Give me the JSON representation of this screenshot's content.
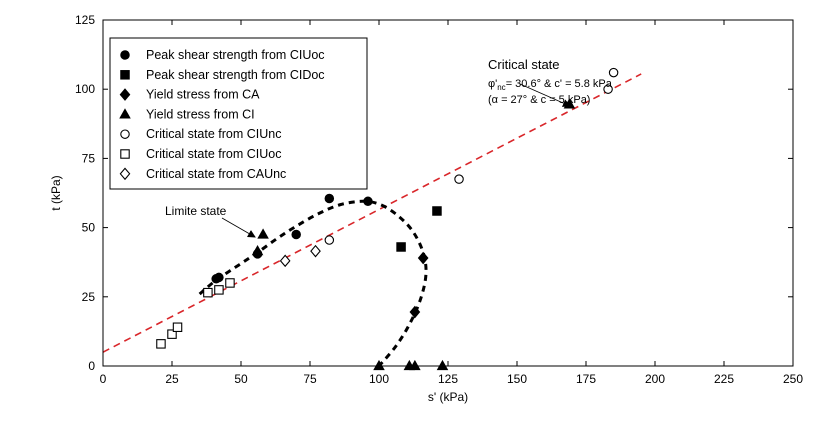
{
  "chart_data": {
    "type": "scatter",
    "title": "",
    "xlabel": "s' (kPa)",
    "ylabel": "t (kPa)",
    "xlim": [
      0,
      250
    ],
    "ylim": [
      0,
      125
    ],
    "xticks": [
      0,
      25,
      50,
      75,
      100,
      125,
      150,
      175,
      200,
      225,
      250
    ],
    "yticks": [
      0,
      25,
      50,
      75,
      100,
      125
    ],
    "grid": false,
    "legend_position": "top-left",
    "series": [
      {
        "name": "Peak shear strength from CIUoc",
        "marker": "circle",
        "filled": true,
        "points": [
          [
            41,
            31.5
          ],
          [
            42,
            32
          ],
          [
            56,
            40.5
          ],
          [
            70,
            47.5
          ],
          [
            82,
            60.5
          ],
          [
            96,
            59.5
          ]
        ]
      },
      {
        "name": "Peak shear strength from CIDoc",
        "marker": "square",
        "filled": true,
        "points": [
          [
            108,
            43
          ],
          [
            121,
            56
          ]
        ]
      },
      {
        "name": "Yield stress from CA",
        "marker": "diamond",
        "filled": true,
        "points": [
          [
            113,
            19.5
          ],
          [
            116,
            39
          ]
        ]
      },
      {
        "name": "Yield stress from CI",
        "marker": "triangle",
        "filled": true,
        "points": [
          [
            100,
            0
          ],
          [
            111,
            0
          ],
          [
            113,
            0
          ],
          [
            123,
            0
          ],
          [
            169,
            94.5
          ],
          [
            56,
            41.5
          ],
          [
            58,
            47.5
          ]
        ]
      },
      {
        "name": "Critical state from CIUnc",
        "marker": "circle",
        "filled": false,
        "points": [
          [
            82,
            45.5
          ],
          [
            129,
            67.5
          ],
          [
            183,
            100
          ],
          [
            185,
            106
          ]
        ]
      },
      {
        "name": "Critical state from CIUoc",
        "marker": "square",
        "filled": false,
        "points": [
          [
            21,
            8
          ],
          [
            25,
            11.5
          ],
          [
            27,
            14
          ],
          [
            38,
            26.5
          ],
          [
            42,
            27.5
          ],
          [
            46,
            30
          ]
        ]
      },
      {
        "name": "Critical state from CAUnc",
        "marker": "diamond",
        "filled": false,
        "points": [
          [
            66,
            38
          ],
          [
            77,
            41.5
          ]
        ]
      }
    ],
    "lines": [
      {
        "name": "Critical state line",
        "style": "red-dashed",
        "points": [
          [
            0,
            5
          ],
          [
            195,
            105.5
          ]
        ]
      },
      {
        "name": "Limite state curve",
        "style": "black-dashed",
        "points": [
          [
            35,
            26
          ],
          [
            41,
            31
          ],
          [
            50,
            37
          ],
          [
            56,
            41
          ],
          [
            63,
            46
          ],
          [
            70,
            50.5
          ],
          [
            78,
            55
          ],
          [
            86,
            58.3
          ],
          [
            94,
            59.5
          ],
          [
            100,
            58.5
          ],
          [
            106,
            55
          ],
          [
            112,
            49
          ],
          [
            116,
            41
          ],
          [
            117,
            33
          ],
          [
            115,
            24
          ],
          [
            111,
            15
          ],
          [
            106,
            7
          ],
          [
            100,
            0
          ]
        ]
      }
    ],
    "annotations": {
      "critical_state": {
        "title": "Critical state",
        "phi_symbol": "φ'",
        "phi_subscript": "nc",
        "phi_text": "= 30.6° & c' = 5.8 kPa",
        "alpha_text": "(α = 27° & c = 5 kPa)"
      },
      "limite_state": {
        "text": "Limite state"
      }
    }
  }
}
